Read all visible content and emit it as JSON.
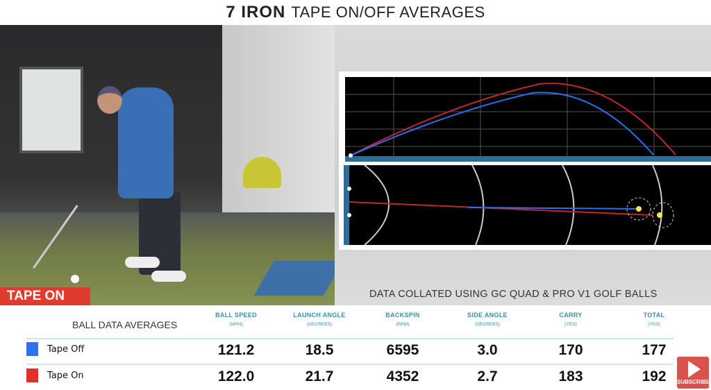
{
  "title": {
    "bold": "7 IRON",
    "rest": "TAPE ON/OFF AVERAGES"
  },
  "video": {
    "tag": "TAPE ON"
  },
  "caption": "DATA COLLATED USING GC QUAD & PRO V1 GOLF BALLS",
  "colors": {
    "tape_off": "#2f6ff0",
    "tape_on": "#e0302a",
    "accent": "#3a8db0"
  },
  "table": {
    "label": "BALL DATA AVERAGES",
    "columns": [
      {
        "name": "BALL SPEED",
        "unit": "(MPH)"
      },
      {
        "name": "LAUNCH ANGLE",
        "unit": "(DEGREES)"
      },
      {
        "name": "BACKSPIN",
        "unit": "(RPM)"
      },
      {
        "name": "SIDE ANGLE",
        "unit": "(DEGREES)"
      },
      {
        "name": "CARRY",
        "unit": "(YDS)"
      },
      {
        "name": "TOTAL",
        "unit": "(YDS)"
      }
    ],
    "rows": [
      {
        "label": "Tape Off",
        "values": [
          "121.2",
          "18.5",
          "6595",
          "3.0",
          "170",
          "177"
        ]
      },
      {
        "label": "Tape On",
        "values": [
          "122.0",
          "21.7",
          "4352",
          "2.7",
          "183",
          "192"
        ]
      }
    ]
  },
  "subscribe": "SUBSCRIBE"
}
